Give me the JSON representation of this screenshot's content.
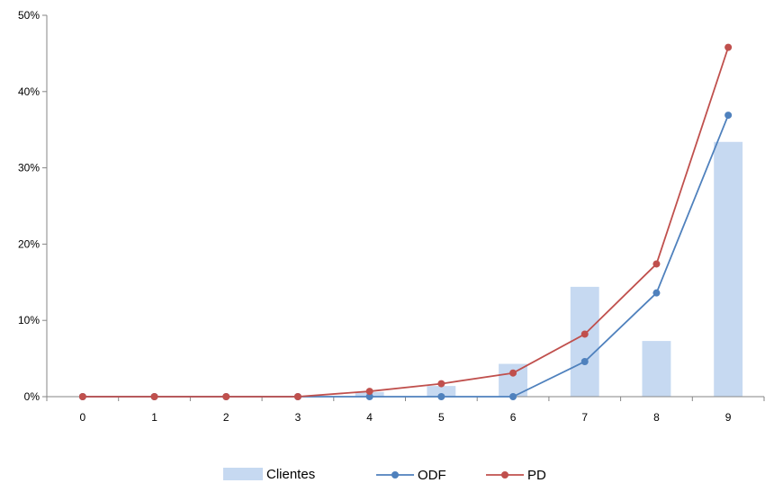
{
  "chart_data": {
    "type": "bar",
    "categories": [
      "0",
      "1",
      "2",
      "3",
      "4",
      "5",
      "6",
      "7",
      "8",
      "9"
    ],
    "ylim": [
      0,
      50
    ],
    "y_ticks": [
      0,
      10,
      20,
      30,
      40,
      50
    ],
    "y_tick_labels": [
      "0%",
      "10%",
      "20%",
      "30%",
      "40%",
      "50%"
    ],
    "grid": false,
    "legend_position": "bottom",
    "series": [
      {
        "name": "Clientes",
        "type": "bar",
        "color": "#c6d9f1",
        "values": [
          0,
          0,
          0,
          0,
          0.6,
          1.4,
          4.3,
          14.4,
          7.3,
          33.4
        ]
      },
      {
        "name": "ODF",
        "type": "line",
        "color": "#4f81bd",
        "values": [
          0,
          0,
          0,
          0,
          0,
          0,
          0,
          4.6,
          13.6,
          36.9
        ]
      },
      {
        "name": "PD",
        "type": "line",
        "color": "#c0504d",
        "values": [
          0,
          0,
          0,
          0,
          0.7,
          1.7,
          3.1,
          8.2,
          17.4,
          45.8
        ]
      }
    ]
  }
}
